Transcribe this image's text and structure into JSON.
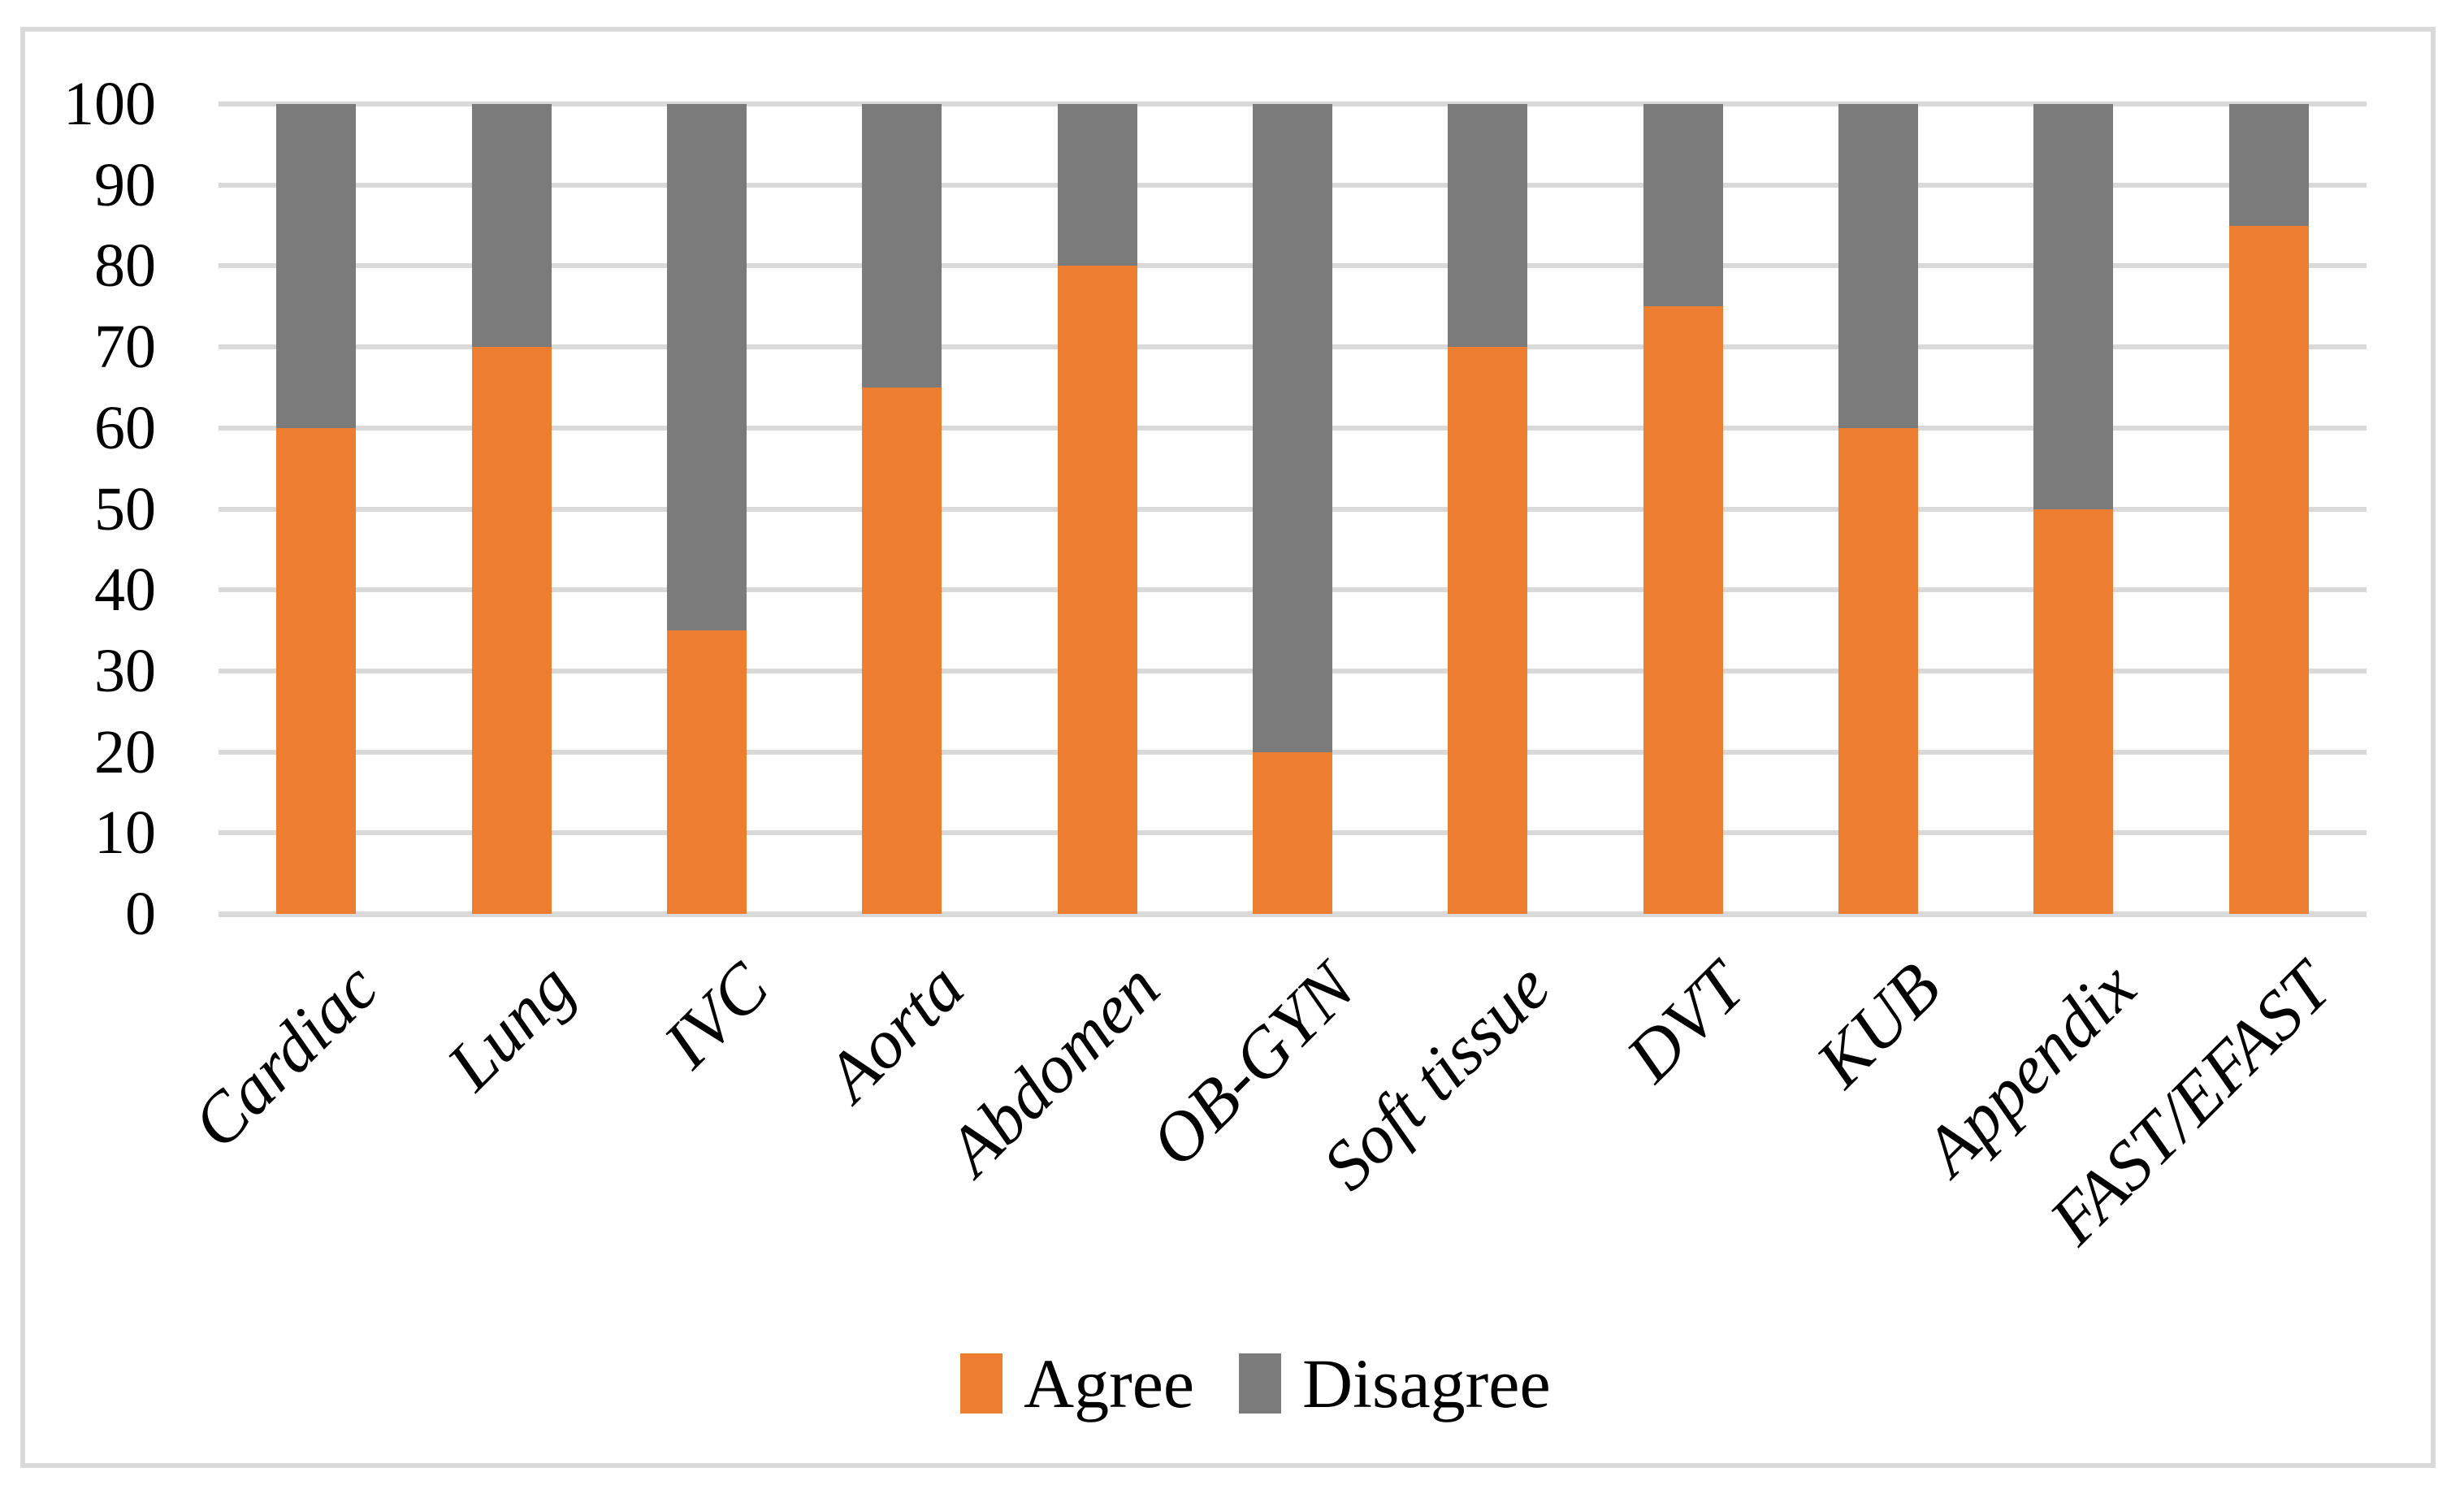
{
  "chart_data": {
    "type": "bar",
    "stacked": true,
    "title": "",
    "xlabel": "",
    "ylabel": "",
    "categories": [
      "Cardiac",
      "Lung",
      "IVC",
      "Aorta",
      "Abdomen",
      "OB-GYN",
      "Soft tissue",
      "DVT",
      "KUB",
      "Appendix",
      "FAST/EFAST"
    ],
    "series": [
      {
        "name": "Agree",
        "color": "#ED7D31",
        "values": [
          60,
          70,
          35,
          65,
          80,
          20,
          70,
          75,
          60,
          50,
          85
        ]
      },
      {
        "name": "Disagree",
        "color": "#7B7B7B",
        "values": [
          40,
          30,
          65,
          35,
          20,
          80,
          30,
          25,
          40,
          50,
          15
        ]
      }
    ],
    "ylim": [
      0,
      100
    ],
    "yticks": [
      0,
      10,
      20,
      30,
      40,
      50,
      60,
      70,
      80,
      90,
      100
    ],
    "grid": true,
    "legend_position": "bottom-center",
    "colors": {
      "gridline": "#D9D9D9",
      "border": "#D9D9D9",
      "text": "#000000",
      "background": "#FFFFFF"
    }
  }
}
